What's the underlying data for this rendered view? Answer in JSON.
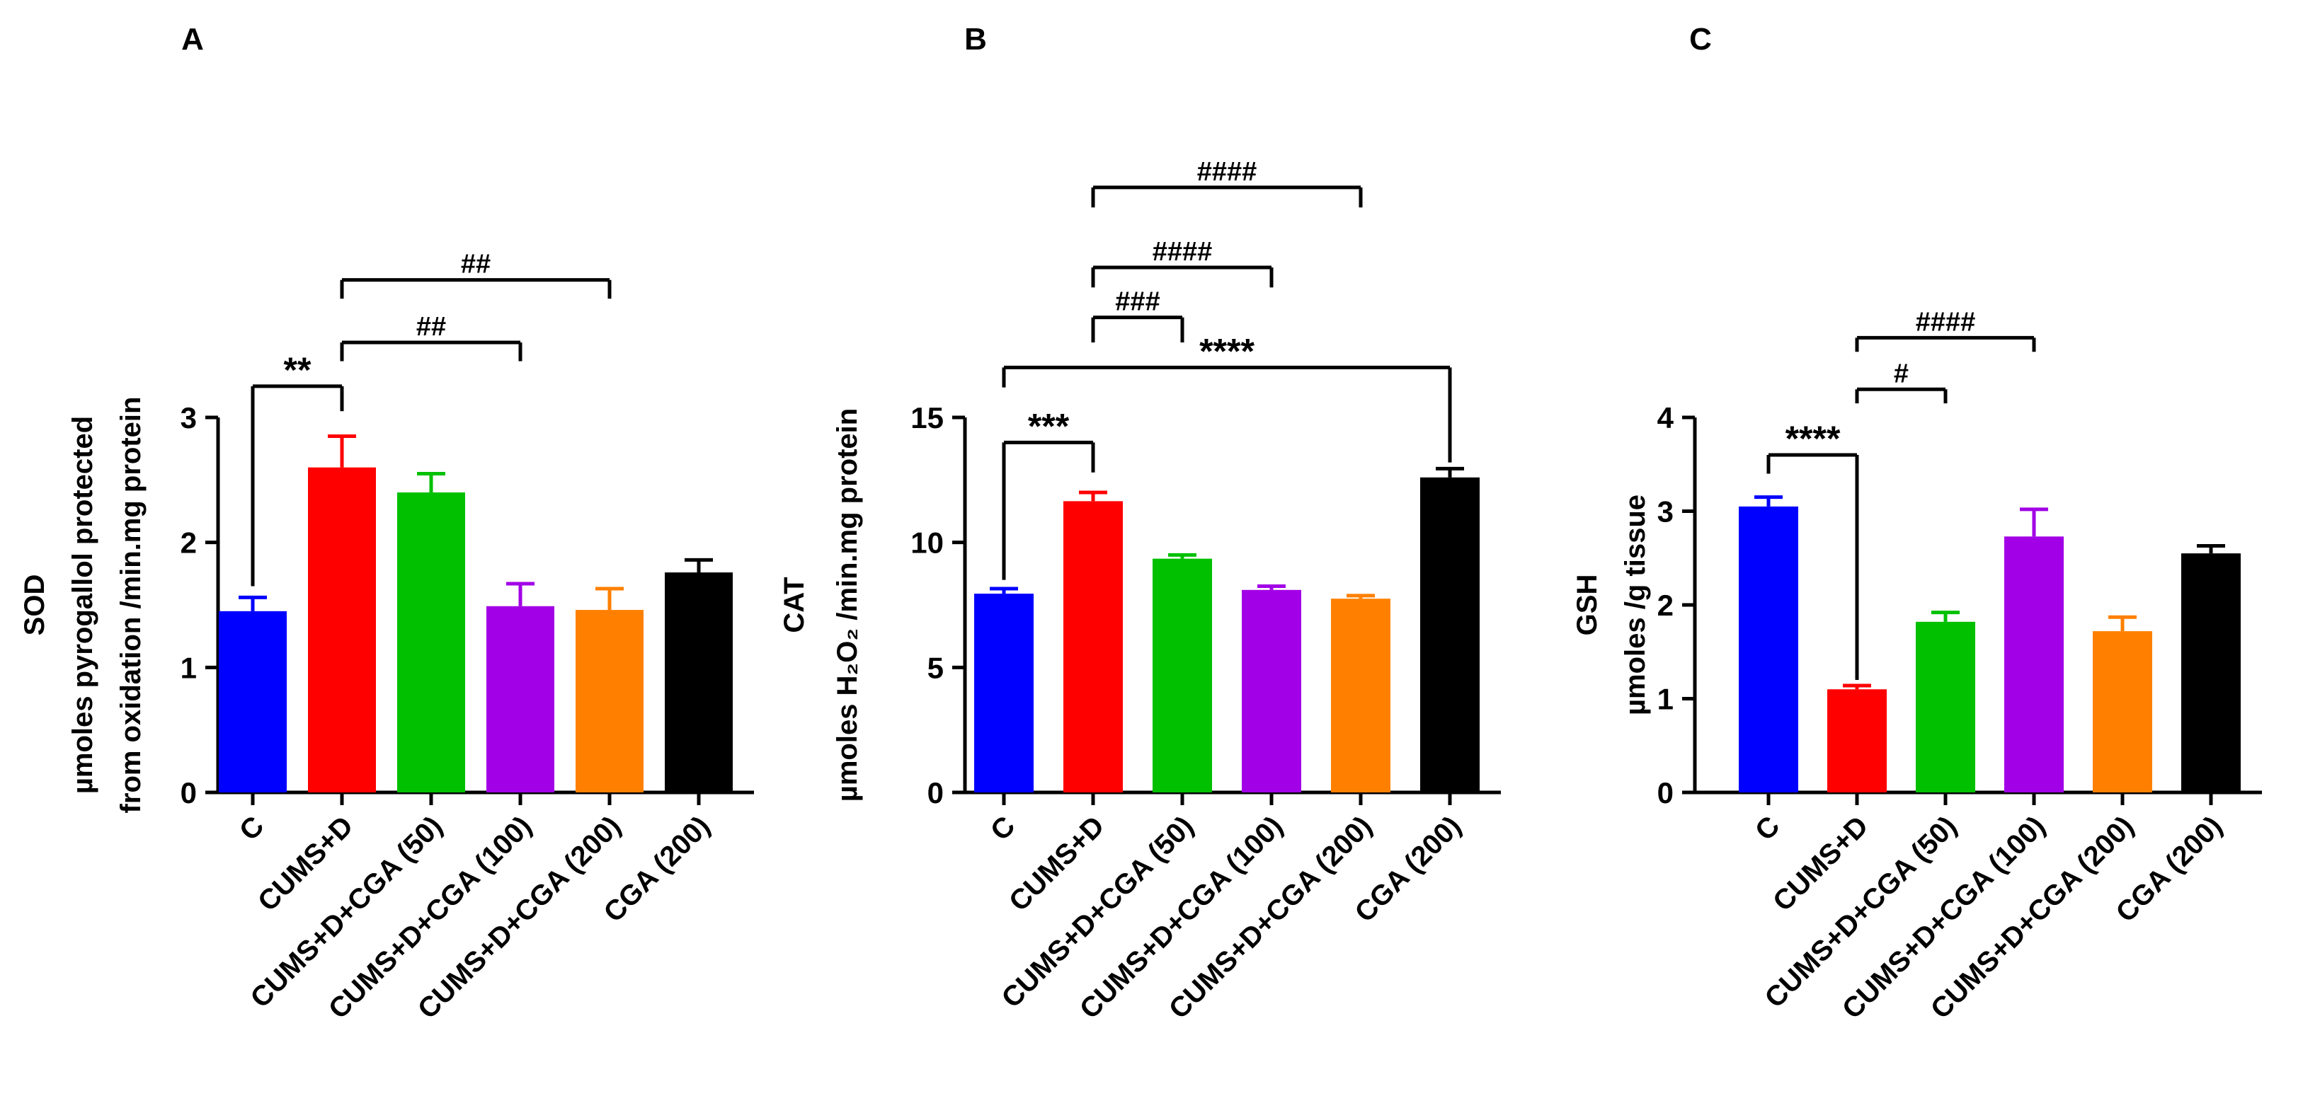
{
  "colors": [
    "#0000ff",
    "#ff0000",
    "#00c000",
    "#a200e6",
    "#ff8000",
    "#000000"
  ],
  "chart_data": [
    {
      "type": "bar",
      "panel_label": "A",
      "title": "",
      "xlabel": "",
      "ylabel_lines": [
        "SOD",
        "µmoles pyrogallol protected",
        "from oxidation /min.mg protein"
      ],
      "categories": [
        "C",
        "CUMS+D",
        "CUMS+D+CGA (50)",
        "CUMS+D+CGA (100)",
        "CUMS+D+CGA (200)",
        "CGA (200)"
      ],
      "values": [
        1.45,
        2.6,
        2.4,
        1.49,
        1.46,
        1.76
      ],
      "errors": [
        0.11,
        0.25,
        0.15,
        0.18,
        0.17,
        0.1
      ],
      "ylim": [
        0,
        3
      ],
      "yticks": [
        0,
        1,
        2,
        3
      ],
      "grid": false,
      "significance": [
        {
          "from": 0,
          "to": 1,
          "label": "**",
          "y": 3.25,
          "drop_from": 1.65,
          "drop_to": 3.05
        },
        {
          "from": 1,
          "to": 3,
          "label": "##",
          "y": 3.6,
          "drop_from": 3.45,
          "drop_to": 3.45
        },
        {
          "from": 1,
          "to": 4,
          "label": "##",
          "y": 4.1,
          "drop_from": 3.95,
          "drop_to": 3.95
        }
      ]
    },
    {
      "type": "bar",
      "panel_label": "B",
      "title": "",
      "xlabel": "",
      "ylabel_lines": [
        "CAT",
        "µmoles H₂O₂ /min.mg protein"
      ],
      "categories": [
        "C",
        "CUMS+D",
        "CUMS+D+CGA (50)",
        "CUMS+D+CGA (100)",
        "CUMS+D+CGA (200)",
        "CGA (200)"
      ],
      "values": [
        7.95,
        11.65,
        9.35,
        8.1,
        7.75,
        12.6
      ],
      "errors": [
        0.2,
        0.35,
        0.15,
        0.15,
        0.12,
        0.35
      ],
      "ylim": [
        0,
        15
      ],
      "yticks": [
        0,
        5,
        10,
        15
      ],
      "grid": false,
      "significance": [
        {
          "from": 0,
          "to": 1,
          "label": "***",
          "y": 14.0,
          "drop_from": 8.5,
          "drop_to": 12.8
        },
        {
          "from": 0,
          "to": 5,
          "label": "****",
          "y": 17.0,
          "drop_from": 16.2,
          "drop_to": 13.2
        },
        {
          "from": 1,
          "to": 2,
          "label": "###",
          "y": 19.0,
          "drop_from": 18.0,
          "drop_to": 18.0
        },
        {
          "from": 1,
          "to": 3,
          "label": "####",
          "y": 21.0,
          "drop_from": 20.2,
          "drop_to": 20.2
        },
        {
          "from": 1,
          "to": 4,
          "label": "####",
          "y": 24.2,
          "drop_from": 23.4,
          "drop_to": 23.4
        }
      ]
    },
    {
      "type": "bar",
      "panel_label": "C",
      "title": "",
      "xlabel": "",
      "ylabel_lines": [
        "GSH",
        "µmoles /g tissue"
      ],
      "categories": [
        "C",
        "CUMS+D",
        "CUMS+D+CGA (50)",
        "CUMS+D+CGA (100)",
        "CUMS+D+CGA (200)",
        "CGA (200)"
      ],
      "values": [
        3.05,
        1.1,
        1.82,
        2.73,
        1.72,
        2.55
      ],
      "errors": [
        0.1,
        0.04,
        0.1,
        0.29,
        0.15,
        0.08
      ],
      "ylim": [
        0,
        4
      ],
      "yticks": [
        0,
        1,
        2,
        3,
        4
      ],
      "grid": false,
      "significance": [
        {
          "from": 0,
          "to": 1,
          "label": "****",
          "y": 3.6,
          "drop_from": 3.4,
          "drop_to": 1.2
        },
        {
          "from": 1,
          "to": 2,
          "label": "#",
          "y": 4.3,
          "drop_from": 4.15,
          "drop_to": 4.15
        },
        {
          "from": 1,
          "to": 3,
          "label": "####",
          "y": 4.85,
          "drop_from": 4.7,
          "drop_to": 4.7
        }
      ]
    }
  ]
}
